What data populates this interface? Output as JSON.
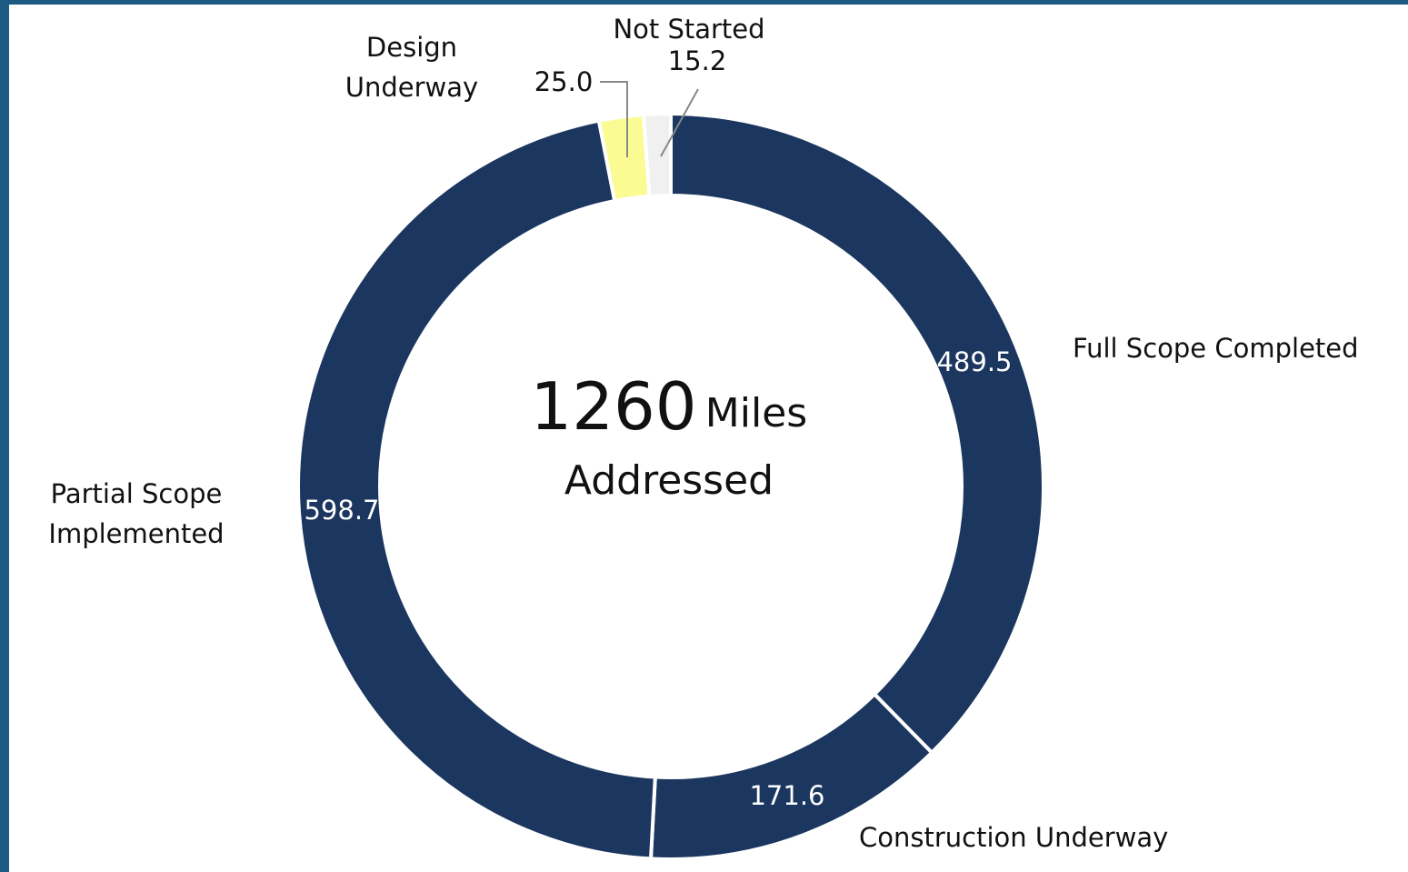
{
  "chart_data": {
    "type": "donut",
    "categories": [
      "Full Scope Completed",
      "Construction Underway",
      "Partial Scope Implemented",
      "Design Underway",
      "Not Started"
    ],
    "values": [
      489.5,
      171.6,
      598.7,
      25.0,
      15.2
    ],
    "value_labels": [
      "489.5",
      "171.6",
      "598.7",
      "25.0",
      "15.2"
    ],
    "colors": [
      "#1b365f",
      "#1b365f",
      "#1b365f",
      "#fbfb94",
      "#f0f0f0"
    ],
    "annotations": [
      "1260",
      "Miles",
      "Addressed"
    ]
  }
}
